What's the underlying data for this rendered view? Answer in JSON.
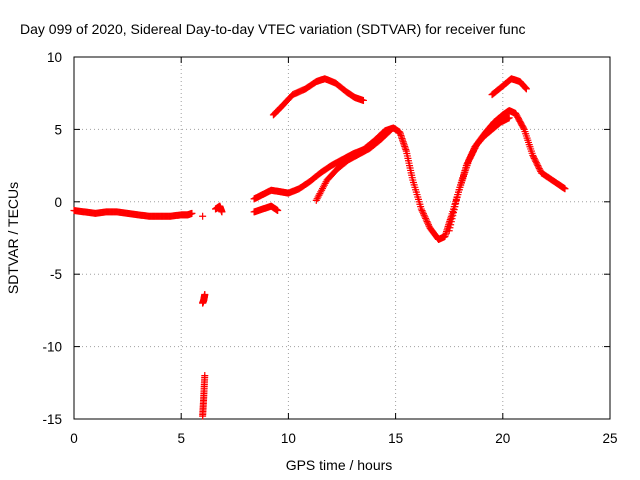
{
  "chart_data": {
    "type": "scatter",
    "title": "Day 099 of 2020, Sidereal Day-to-day VTEC variation (SDTVAR) for receiver func",
    "xlabel": "GPS time / hours",
    "ylabel": "SDTVAR / TECUs",
    "xlim": [
      0,
      25
    ],
    "ylim": [
      -15,
      10
    ],
    "xticks": [
      0,
      5,
      10,
      15,
      20,
      25
    ],
    "yticks": [
      -15,
      -10,
      -5,
      0,
      5,
      10
    ],
    "xtick_labels": [
      "0",
      "5",
      "10",
      "15",
      "20",
      "25"
    ],
    "ytick_labels": [
      "-15",
      "-10",
      "-5",
      "0",
      "5",
      "10"
    ],
    "grid": true,
    "marker": "+",
    "series": [
      {
        "name": "SDTVAR",
        "color": "#ff0000",
        "segments": [
          {
            "x": [
              0.0,
              0.5,
              1.0,
              1.5,
              2.0,
              2.5,
              3.0,
              3.5,
              4.0,
              4.5,
              5.0,
              5.3,
              5.5
            ],
            "y": [
              -0.6,
              -0.7,
              -0.8,
              -0.7,
              -0.7,
              -0.8,
              -0.9,
              -1.0,
              -1.0,
              -1.0,
              -0.9,
              -0.9,
              -0.8
            ]
          },
          {
            "x": [
              6.0
            ],
            "y": [
              -1.0
            ]
          },
          {
            "x": [
              6.0,
              6.05,
              6.1
            ],
            "y": [
              -7.0,
              -6.8,
              -6.4
            ]
          },
          {
            "x": [
              6.0,
              6.05,
              6.1
            ],
            "y": [
              -14.8,
              -13.5,
              -12.0
            ]
          },
          {
            "x": [
              6.6,
              6.8,
              6.9
            ],
            "y": [
              -0.5,
              -0.3,
              -0.7
            ]
          },
          {
            "x": [
              8.4,
              8.8,
              9.2,
              9.6,
              10.0,
              10.5,
              11.0,
              11.5,
              12.0,
              12.5,
              13.0,
              13.5,
              14.0,
              14.5,
              14.9,
              15.2,
              15.5,
              15.8,
              16.2,
              16.6,
              17.0,
              17.3,
              17.6,
              18.0,
              18.4,
              18.8,
              19.2,
              19.6,
              20.0,
              20.3,
              20.6,
              21.0,
              21.4,
              21.8,
              22.2,
              22.6,
              22.9
            ],
            "y": [
              0.2,
              0.5,
              0.8,
              0.7,
              0.6,
              0.9,
              1.4,
              2.0,
              2.5,
              2.9,
              3.3,
              3.6,
              4.2,
              4.9,
              5.1,
              4.8,
              3.5,
              1.5,
              -0.5,
              -1.8,
              -2.6,
              -2.4,
              -1.0,
              1.0,
              2.8,
              4.0,
              4.8,
              5.5,
              6.0,
              6.3,
              6.1,
              5.0,
              3.2,
              2.0,
              1.6,
              1.2,
              0.9
            ]
          },
          {
            "x": [
              8.4,
              8.8,
              9.2,
              9.5
            ],
            "y": [
              -0.7,
              -0.5,
              -0.3,
              -0.6
            ]
          },
          {
            "x": [
              11.3,
              11.8,
              12.3,
              12.8,
              13.3,
              13.8,
              14.3,
              14.8
            ],
            "y": [
              0.1,
              1.5,
              2.3,
              2.9,
              3.3,
              3.7,
              4.3,
              5.0
            ]
          },
          {
            "x": [
              9.3,
              9.7,
              10.2,
              10.8,
              11.3,
              11.7,
              12.2,
              12.7,
              13.1,
              13.5
            ],
            "y": [
              6.0,
              6.6,
              7.4,
              7.8,
              8.3,
              8.5,
              8.2,
              7.6,
              7.2,
              7.0
            ]
          },
          {
            "x": [
              19.5,
              20.0,
              20.4,
              20.8,
              21.1
            ],
            "y": [
              7.4,
              8.0,
              8.5,
              8.3,
              7.8
            ]
          },
          {
            "x": [
              17.5,
              17.9,
              18.3,
              18.7,
              19.1,
              19.5,
              19.9,
              20.3
            ],
            "y": [
              -2.0,
              0.5,
              2.5,
              3.8,
              4.5,
              5.0,
              5.5,
              5.8
            ]
          }
        ]
      }
    ]
  }
}
